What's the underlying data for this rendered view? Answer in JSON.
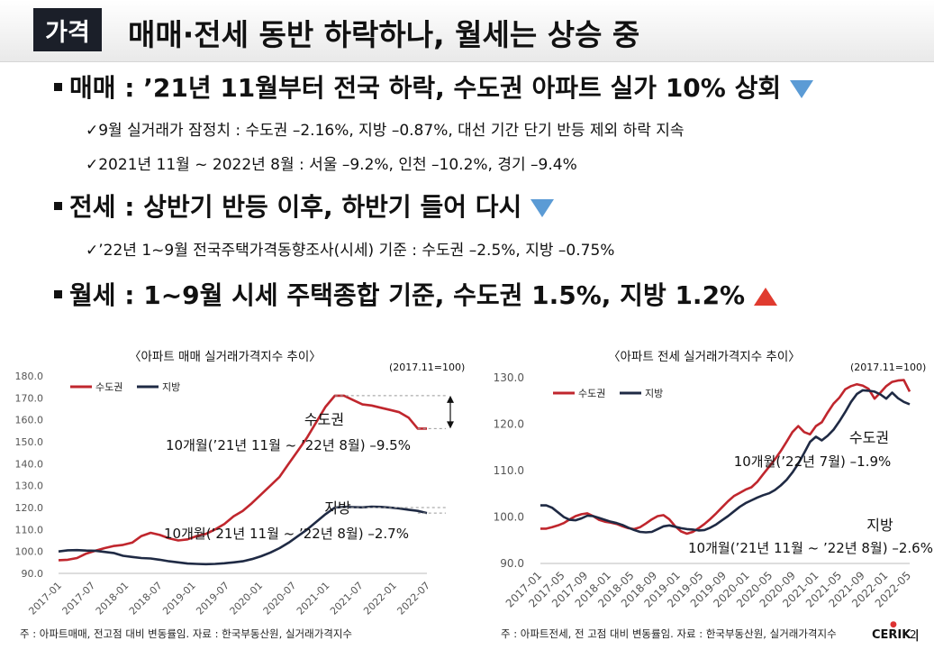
{
  "header": {
    "tag": "가격",
    "title": "매매·전세 동반 하락하나, 월세는 상승 중"
  },
  "bullets": [
    {
      "text": "매매 : ’21년 11월부터 전국 하락, 수도권 아파트 실가 10% 상회",
      "trend": "down",
      "subs": [
        "✓9월 실거래가 잠정치 : 수도권 –2.16%, 지방 –0.87%, 대선 기간 단기 반등 제외 하락 지속",
        "✓2021년 11월 ~ 2022년 8월 : 서울 –9.2%, 인천 –10.2%, 경기 –9.4%"
      ]
    },
    {
      "text": "전세 : 상반기 반등 이후, 하반기 들어 다시",
      "trend": "down",
      "subs": [
        "✓’22년 1~9월 전국주택가격동향조사(시세) 기준 : 수도권 –2.5%, 지방 –0.75%"
      ]
    },
    {
      "text": "월세 : 1~9월 시세 주택종합 기준, 수도권 1.5%, 지방 1.2%",
      "trend": "up",
      "subs": []
    }
  ],
  "colors": {
    "capital": "#c0262d",
    "local": "#1f2a44",
    "down_arrow": "#5b9bd5",
    "up_arrow": "#e03b2f"
  },
  "chart_data": [
    {
      "type": "line",
      "title": "〈아파트 매매 실거래가격지수 추이〉",
      "note": "(2017.11=100)",
      "ylim": [
        90,
        180
      ],
      "yticks": [
        "180.0",
        "170.0",
        "160.0",
        "150.0",
        "140.0",
        "130.0",
        "120.0",
        "110.0",
        "100.0",
        "90.0"
      ],
      "xticks": [
        "2017-01",
        "2017-07",
        "2018-01",
        "2018-07",
        "2019-01",
        "2019-07",
        "2020-01",
        "2020-07",
        "2021-01",
        "2021-07",
        "2022-01",
        "2022-07"
      ],
      "series": [
        {
          "name": "수도권",
          "values": [
            96,
            96.2,
            97,
            99,
            100.3,
            101.5,
            102.5,
            103,
            104,
            107,
            108.5,
            107.5,
            106,
            105,
            105.5,
            107,
            108,
            110,
            112.5,
            116,
            118.5,
            122,
            126,
            130,
            134,
            140,
            146,
            152,
            159,
            166,
            171,
            171,
            169,
            167,
            166.5,
            165.5,
            164.5,
            163.5,
            161,
            156,
            156
          ]
        },
        {
          "name": "지방",
          "values": [
            100,
            100.5,
            100.6,
            100.4,
            100.3,
            99.8,
            99.3,
            98,
            97.5,
            97,
            96.8,
            96.2,
            95.5,
            95,
            94.5,
            94.3,
            94.2,
            94.3,
            94.6,
            95,
            95.5,
            96.5,
            97.8,
            99.5,
            101.5,
            104,
            107,
            110,
            113.5,
            117,
            120,
            120.3,
            120.2,
            120.1,
            120.4,
            120.3,
            120,
            119.6,
            119,
            118.5,
            117.5
          ]
        }
      ],
      "labels": {
        "capital": "수도권",
        "capital_change": "10개월(’21년 11월 ~ ’22년 8월) –9.5%",
        "local": "지방",
        "local_change": "10개월(’21년 11월 ~ ’22년 8월) –2.7%"
      },
      "footnote": "주 : 아파트매매, 전고점 대비 변동률임. 자료 : 한국부동산원, 실거래가격지수"
    },
    {
      "type": "line",
      "title": "〈아파트 전세 실거래가격지수 추이〉",
      "note": "(2017.11=100)",
      "ylim": [
        90,
        130
      ],
      "yticks": [
        "130.0",
        "120.0",
        "110.0",
        "100.0",
        "90.0"
      ],
      "xticks": [
        "2017-01",
        "2017-05",
        "2017-09",
        "2018-01",
        "2018-05",
        "2018-09",
        "2019-01",
        "2019-05",
        "2019-09",
        "2020-01",
        "2020-05",
        "2020-09",
        "2021-01",
        "2021-05",
        "2021-09",
        "2022-01",
        "2022-05"
      ],
      "series": [
        {
          "name": "수도권",
          "values": [
            97.5,
            97.5,
            97.8,
            98.2,
            98.7,
            99.5,
            100.2,
            100.6,
            100.8,
            100.2,
            99.4,
            99,
            98.8,
            98.5,
            98,
            97.6,
            97.4,
            97.8,
            98.6,
            99.5,
            100.2,
            100.4,
            99.5,
            98,
            96.9,
            96.4,
            96.8,
            97.6,
            98.5,
            99.6,
            100.8,
            102.1,
            103.4,
            104.5,
            105.2,
            105.9,
            106.4,
            107.6,
            109.2,
            110.8,
            112.4,
            114.2,
            116.2,
            118.3,
            119.6,
            118.3,
            117.8,
            119.6,
            120.4,
            122.5,
            124.4,
            125.7,
            127.5,
            128.2,
            128.6,
            128.3,
            127.6,
            125.5,
            126.8,
            128.2,
            129.1,
            129.4,
            129.5,
            127
          ]
        },
        {
          "name": "지방",
          "values": [
            102.5,
            102.5,
            102,
            101,
            100,
            99.4,
            99.3,
            99.7,
            100.3,
            100.2,
            99.8,
            99.4,
            99,
            98.7,
            98.3,
            97.7,
            97.2,
            96.8,
            96.7,
            96.8,
            97.4,
            98,
            98.2,
            97.9,
            97.6,
            97.4,
            97.3,
            97.1,
            97.2,
            97.7,
            98.4,
            99.3,
            100.2,
            101.2,
            102.2,
            103,
            103.6,
            104.2,
            104.7,
            105.1,
            105.8,
            106.8,
            108,
            109.6,
            111.5,
            113.8,
            116.2,
            117.3,
            116.5,
            117.5,
            118.8,
            120.6,
            122.6,
            124.8,
            126.5,
            127.3,
            127.2,
            127,
            126.4,
            125.5,
            126.8,
            125.6,
            124.8,
            124.3
          ]
        }
      ],
      "labels": {
        "capital": "수도권",
        "capital_change": "10개월(’22년 7월) –1.9%",
        "local": "지방",
        "local_change": "10개월(’21년 11월 ~ ’22년 8월) –2.6%"
      },
      "footnote": "주 : 아파트전세, 전 고점 대비 변동률임. 자료 : 한국부동산원, 실거래가격지수"
    }
  ],
  "footer": {
    "logo": "CERIK",
    "page": "2"
  }
}
